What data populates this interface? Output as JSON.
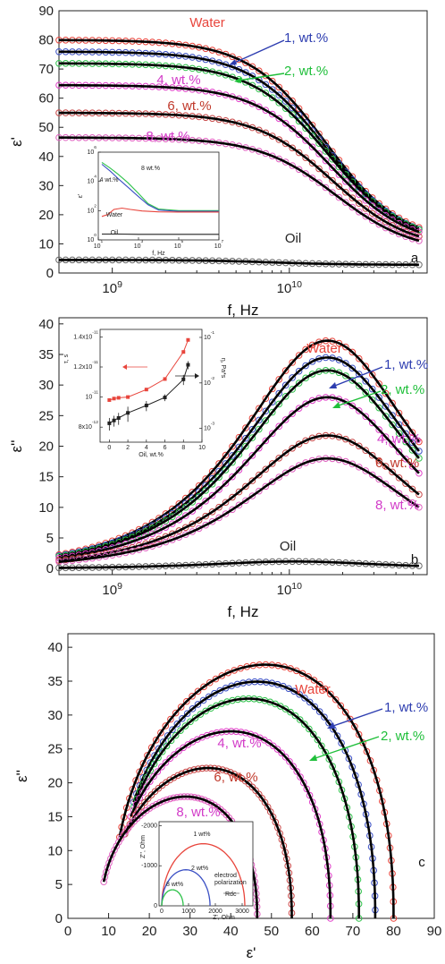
{
  "chart_data": [
    {
      "id": "a",
      "type": "scatter",
      "panel_label": "a",
      "xlabel": "f, Hz",
      "ylabel": "ε'",
      "xscale": "log",
      "xlim": [
        500000000,
        60000000000
      ],
      "ylim": [
        0,
        90
      ],
      "x_ticks": [
        {
          "value": 1000000000,
          "label": "10",
          "exp": "9"
        },
        {
          "value": 10000000000,
          "label": "10",
          "exp": "10"
        }
      ],
      "y_ticks": [
        0,
        10,
        20,
        30,
        40,
        50,
        60,
        70,
        80,
        90
      ],
      "series": [
        {
          "name": "Water",
          "color": "#e8453c",
          "label_color": "#e8453c",
          "eps_s": 80,
          "eps_inf": 10,
          "tau_ps": 10.0
        },
        {
          "name": "1, wt.%",
          "color": "#3a4fc4",
          "label_color": "#2d3db0",
          "eps_s": 76,
          "eps_inf": 9.5,
          "tau_ps": 9.8
        },
        {
          "name": "2, wt.%",
          "color": "#2ec24a",
          "label_color": "#1fbf3a",
          "eps_s": 72,
          "eps_inf": 9.5,
          "tau_ps": 9.6
        },
        {
          "name": "4, wt.%",
          "color": "#e040c8",
          "label_color": "#d23bc8",
          "eps_s": 64.5,
          "eps_inf": 9,
          "tau_ps": 9.3
        },
        {
          "name": "6, wt.%",
          "color": "#c84848",
          "label_color": "#c0392b",
          "eps_s": 55,
          "eps_inf": 8,
          "tau_ps": 9.0
        },
        {
          "name": "8, wt.%",
          "color": "#e060c0",
          "label_color": "#d23bc8",
          "eps_s": 46.5,
          "eps_inf": 7,
          "tau_ps": 8.7
        },
        {
          "name": "Oil",
          "color": "#666666",
          "label_color": "#222222",
          "eps_s": 4.5,
          "eps_inf": 2.8,
          "tau_ps": 20
        }
      ],
      "inset": {
        "ylabel": "ε'",
        "xlabel": "f, Hz",
        "xscale": "log",
        "yscale": "log",
        "xlim": [
          10,
          10000000
        ],
        "ylim": [
          1,
          1000000
        ],
        "x_ticks": [
          {
            "value": 10,
            "label": "10",
            "exp": "1"
          },
          {
            "value": 1000,
            "label": "10",
            "exp": "3"
          },
          {
            "value": 100000,
            "label": "10",
            "exp": "5"
          },
          {
            "value": 10000000,
            "label": "10",
            "exp": "7"
          }
        ],
        "y_ticks": [
          {
            "value": 1,
            "label": "10",
            "exp": "0"
          },
          {
            "value": 100,
            "label": "10",
            "exp": "2"
          },
          {
            "value": 10000,
            "label": "10",
            "exp": "4"
          },
          {
            "value": 1000000,
            "label": "10",
            "exp": "6"
          }
        ],
        "series": [
          {
            "name": "8 wt.%",
            "color": "#2ec24a",
            "x": [
              15,
              40,
              100,
              300,
              1000,
              3000,
              10000,
              100000,
              10000000
            ],
            "y": [
              200000,
              80000,
              30000,
              8000,
              1500,
              300,
              130,
              100,
              100
            ]
          },
          {
            "name": "4 wt.%",
            "color": "#3a4fc4",
            "x": [
              15,
              40,
              100,
              300,
              1000,
              3000,
              10000,
              100000,
              10000000
            ],
            "y": [
              150000,
              50000,
              15000,
              4000,
              900,
              250,
              110,
              90,
              90
            ]
          },
          {
            "name": "Water",
            "color": "#e8453c",
            "x": [
              15,
              30,
              60,
              150,
              400,
              1500,
              10000,
              100000,
              10000000
            ],
            "y": [
              40,
              55,
              120,
              150,
              120,
              95,
              82,
              80,
              80
            ]
          },
          {
            "name": "Oil",
            "color": "#222222",
            "x": [
              15,
              100,
              1000,
              100000,
              10000000
            ],
            "y": [
              2.5,
              2.5,
              2.4,
              2.4,
              2.4
            ]
          }
        ]
      }
    },
    {
      "id": "b",
      "type": "scatter",
      "panel_label": "b",
      "xlabel": "f, Hz",
      "ylabel": "ε''",
      "xscale": "log",
      "xlim": [
        500000000,
        60000000000
      ],
      "ylim": [
        -1,
        41
      ],
      "x_ticks": [
        {
          "value": 1000000000,
          "label": "10",
          "exp": "9"
        },
        {
          "value": 10000000000,
          "label": "10",
          "exp": "10"
        }
      ],
      "y_ticks": [
        0,
        5,
        10,
        15,
        20,
        25,
        30,
        35,
        40
      ],
      "series": [
        {
          "name": "Water",
          "color": "#e8453c",
          "label_color": "#e8453c",
          "eps_s": 80,
          "eps_inf": 5.5,
          "tau_ps": 9.7
        },
        {
          "name": "1, wt.%",
          "color": "#3a4fc4",
          "label_color": "#2d3db0",
          "eps_s": 76,
          "eps_inf": 7,
          "tau_ps": 9.7
        },
        {
          "name": "2, wt.%",
          "color": "#2ec24a",
          "label_color": "#1fbf3a",
          "eps_s": 72,
          "eps_inf": 7.2,
          "tau_ps": 9.7
        },
        {
          "name": "4, wt.%",
          "color": "#e040c8",
          "label_color": "#d23bc8",
          "eps_s": 64.5,
          "eps_inf": 8.5,
          "tau_ps": 9.7
        },
        {
          "name": "6, wt.%",
          "color": "#c84848",
          "label_color": "#c0392b",
          "eps_s": 55,
          "eps_inf": 11.5,
          "tau_ps": 9.7
        },
        {
          "name": "8, wt.%",
          "color": "#e060c0",
          "label_color": "#d23bc8",
          "eps_s": 46.5,
          "eps_inf": 10.5,
          "tau_ps": 9.7
        },
        {
          "name": "Oil",
          "color": "#666666",
          "label_color": "#222222",
          "eps_s": 3.3,
          "eps_inf": 1.0,
          "tau_ps": 15
        }
      ],
      "inset": {
        "ylabel_left": "τ, s",
        "ylabel_right": "η, Pa*s",
        "xlabel": "Oil, wt.%",
        "xlim": [
          -1,
          10
        ],
        "x_ticks": [
          0,
          2,
          4,
          6,
          8,
          10
        ],
        "ylim_left": [
          7e-12,
          1.45e-11
        ],
        "left_ticks": [
          {
            "value": 8e-12,
            "label": "8x10",
            "exp": "-12"
          },
          {
            "value": 1e-11,
            "label": "10",
            "exp": "-11"
          },
          {
            "value": 1.2e-11,
            "label": "1.2x10",
            "exp": "-11"
          },
          {
            "value": 1.4e-11,
            "label": "1.4x10",
            "exp": "-11"
          }
        ],
        "ylim_right": [
          0.0005,
          0.15
        ],
        "right_ticks": [
          {
            "value": 0.001,
            "label": "10",
            "exp": "-3"
          },
          {
            "value": 0.01,
            "label": "10",
            "exp": "-2"
          },
          {
            "value": 0.1,
            "label": "10",
            "exp": "-1"
          }
        ],
        "tau": {
          "color": "#e8453c",
          "x": [
            0,
            0.5,
            1,
            2,
            4,
            6,
            8,
            8.5
          ],
          "y": [
            9.8e-12,
            9.9e-12,
            9.95e-12,
            1e-11,
            1.05e-11,
            1.12e-11,
            1.3e-11,
            1.38e-11
          ]
        },
        "eta": {
          "color": "#222222",
          "x": [
            0,
            0.5,
            1,
            2,
            4,
            6,
            8,
            8.5
          ],
          "y": [
            0.0013,
            0.0015,
            0.0017,
            0.0022,
            0.0032,
            0.0048,
            0.012,
            0.025
          ],
          "err": [
            0.0004,
            0.0004,
            0.0005,
            0.0008,
            0.0008,
            0.0008,
            0.003,
            0.005
          ]
        }
      }
    },
    {
      "id": "c",
      "type": "scatter",
      "panel_label": "c",
      "xlabel": "ε'",
      "ylabel": "ε''",
      "xlim": [
        0,
        90
      ],
      "ylim": [
        0,
        42
      ],
      "x_ticks": [
        0,
        10,
        20,
        30,
        40,
        50,
        60,
        70,
        80,
        90
      ],
      "y_ticks": [
        0,
        5,
        10,
        15,
        20,
        25,
        30,
        35,
        40
      ],
      "series": [
        {
          "name": "Water",
          "color": "#e8453c",
          "label_color": "#e8453c",
          "x_min": 11,
          "x_max": 80,
          "start_y": 18,
          "peak": 37.3,
          "skew_b": -0.08
        },
        {
          "name": "1, wt.%",
          "color": "#3a4fc4",
          "label_color": "#2d3db0",
          "x_min": 12,
          "x_max": 75.5,
          "start_y": 22,
          "peak": 34.8,
          "skew_b": -0.08
        },
        {
          "name": "2, wt.%",
          "color": "#2ec24a",
          "label_color": "#1fbf3a",
          "x_min": 12,
          "x_max": 71.5,
          "start_y": 21,
          "peak": 32.3,
          "skew_b": -0.08
        },
        {
          "name": "4, wt.%",
          "color": "#e040c8",
          "label_color": "#d23bc8",
          "x_min": 11,
          "x_max": 64.5,
          "start_y": 19,
          "peak": 27.5,
          "skew_b": -0.08
        },
        {
          "name": "6, wt.%",
          "color": "#c84848",
          "label_color": "#c0392b",
          "x_min": 10,
          "x_max": 55,
          "start_y": 16,
          "peak": 22.1,
          "skew_b": -0.08
        },
        {
          "name": "8, wt.%",
          "color": "#e060c0",
          "label_color": "#d23bc8",
          "x_min": 8,
          "x_max": 46.5,
          "start_y": 10,
          "peak": 17.9,
          "skew_b": -0.08
        }
      ],
      "inset": {
        "ylabel": "Z'', Ohm",
        "xlabel": "Z', Ohm",
        "xlim": [
          -100,
          3400
        ],
        "ylim": [
          0,
          -2100
        ],
        "x_ticks": [
          0,
          1000,
          2000,
          3000
        ],
        "y_ticks": [
          0,
          -1000,
          -2000
        ],
        "series": [
          {
            "name": "1 wt%",
            "color": "#e8453c",
            "center": 1550,
            "radius": 1550
          },
          {
            "name": "2 wt%",
            "color": "#3a4fc4",
            "center": 900,
            "radius": 900
          },
          {
            "name": "8 wt%",
            "color": "#2ec24a",
            "center": 400,
            "radius": 400
          }
        ],
        "annotations": {
          "electrode": "electrod",
          "polarization": "polarization",
          "rdc": "Rdc"
        }
      }
    }
  ]
}
